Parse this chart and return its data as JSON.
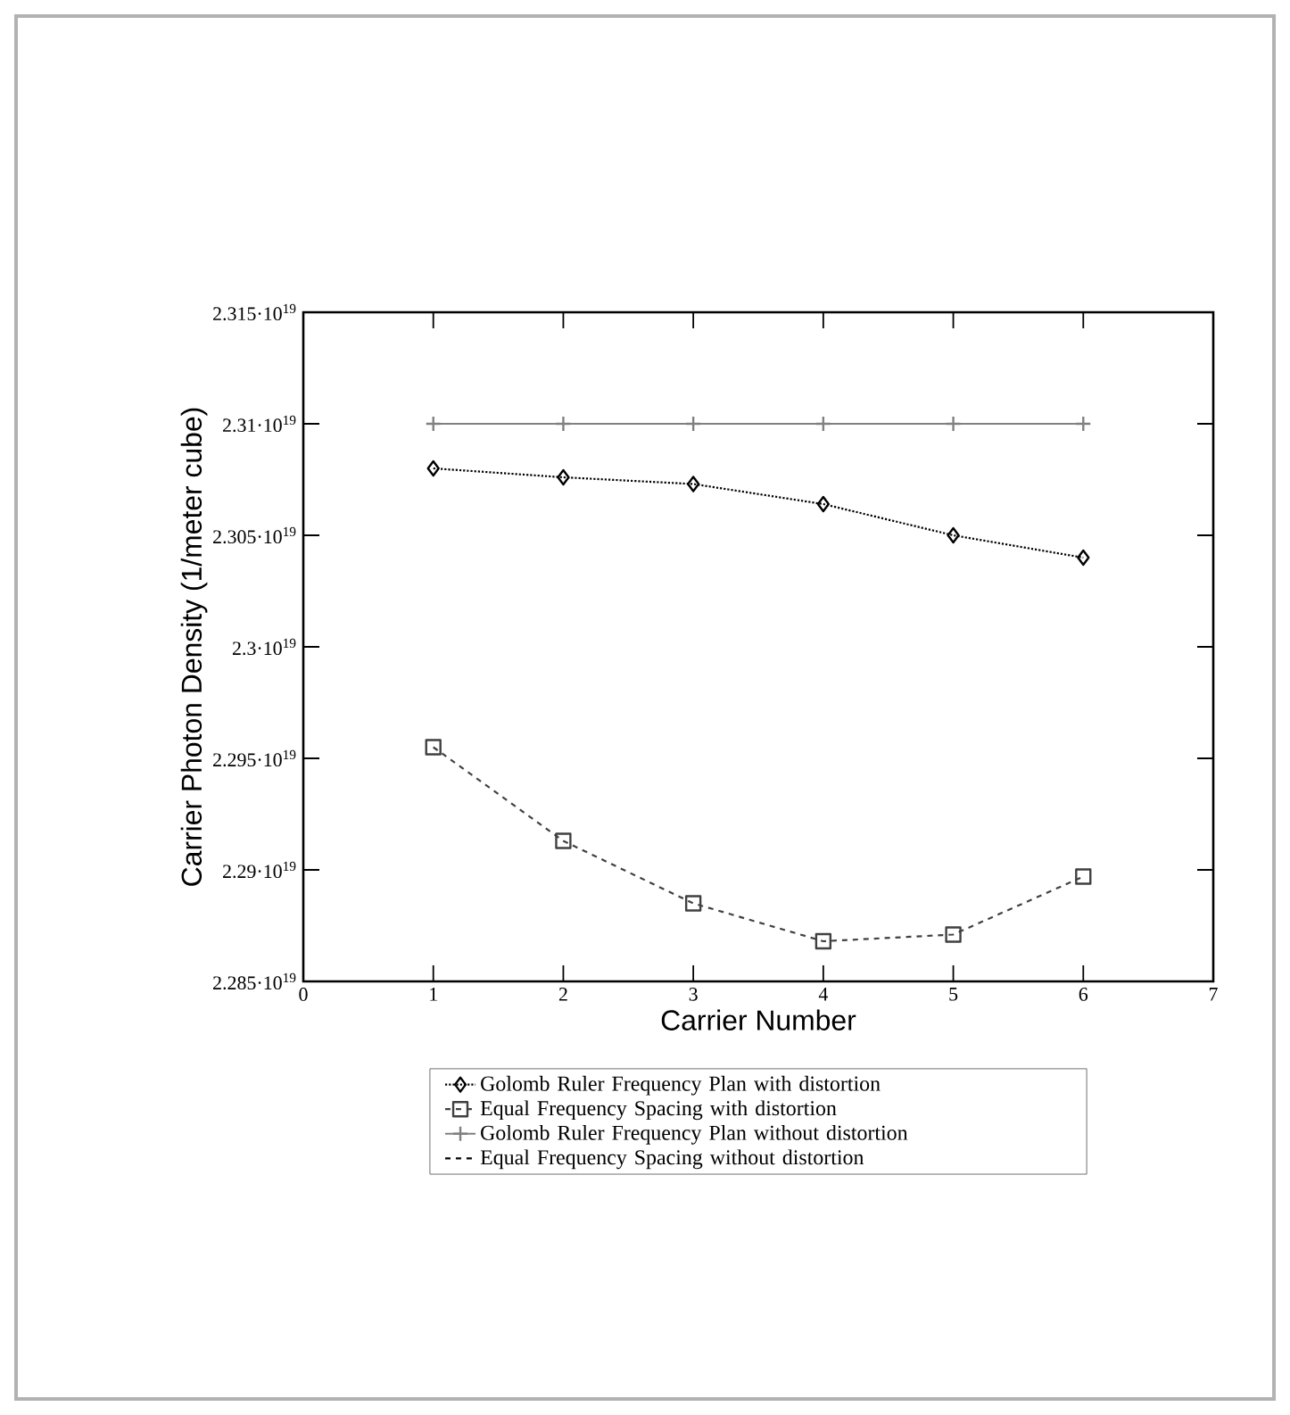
{
  "chart_data": {
    "type": "line",
    "xlabel": "Carrier Number",
    "ylabel": "Carrier Photon Density (1/meter cube)",
    "x": [
      1,
      2,
      3,
      4,
      5,
      6
    ],
    "series": [
      {
        "name": "Golomb Ruler Frequency Plan with distortion",
        "color": "#000000",
        "marker": "diamond",
        "line_style": "dotted",
        "values": [
          2.308e+19,
          2.3076e+19,
          2.3073e+19,
          2.3064e+19,
          2.305e+19,
          2.304e+19
        ]
      },
      {
        "name": "Equal Frequency Spacing with distortion",
        "color": "#404040",
        "marker": "square",
        "line_style": "dashed",
        "values": [
          2.2955e+19,
          2.2913e+19,
          2.2885e+19,
          2.2868e+19,
          2.2871e+19,
          2.2897e+19
        ]
      },
      {
        "name": "Golomb Ruler Frequency Plan without distortion",
        "color": "#808080",
        "marker": "cross",
        "line_style": "solid",
        "values": [
          2.31e+19,
          2.31e+19,
          2.31e+19,
          2.31e+19,
          2.31e+19,
          2.31e+19
        ]
      },
      {
        "name": "Equal Frequency Spacing without distortion",
        "color": "#000000",
        "marker": "none",
        "line_style": "dashed",
        "values": [
          null,
          null,
          null,
          null,
          null,
          null
        ]
      }
    ],
    "xlim": [
      0,
      7
    ],
    "xticks": [
      0,
      1,
      2,
      3,
      4,
      5,
      6,
      7
    ],
    "ylim": [
      2.285e+19,
      2.315e+19
    ],
    "yticks": [
      {
        "value": 2.285e+19,
        "label": "2.285·10$^{19}$"
      },
      {
        "value": 2.29e+19,
        "label": "2.29·10$^{19}$"
      },
      {
        "value": 2.295e+19,
        "label": "2.295·10$^{19}$"
      },
      {
        "value": 2.3e+19,
        "label": "2.3·10$^{19}$"
      },
      {
        "value": 2.305e+19,
        "label": "2.305·10$^{19}$"
      },
      {
        "value": 2.31e+19,
        "label": "2.31·10$^{19}$"
      },
      {
        "value": 2.315e+19,
        "label": "2.315·10$^{19}$"
      }
    ],
    "grid": false,
    "legend": "bottom"
  }
}
